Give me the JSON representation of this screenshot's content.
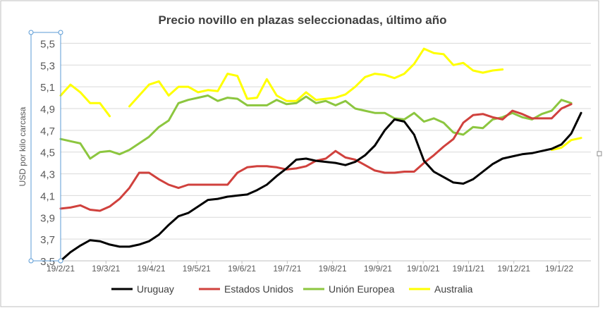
{
  "chart_data": {
    "type": "line",
    "title": "Precio novillo en plazas seleccionadas, último año",
    "xlabel": "",
    "ylabel": "USD por kilo carcasa",
    "ylim": [
      3.5,
      5.6
    ],
    "y_ticks": [
      "3,5",
      "3,7",
      "3,9",
      "4,1",
      "4,3",
      "4,5",
      "4,7",
      "4,9",
      "5,1",
      "5,3",
      "5,5"
    ],
    "x_tick_labels": [
      "19/2/21",
      "19/3/21",
      "19/4/21",
      "19/5/21",
      "19/6/21",
      "19/7/21",
      "19/8/21",
      "19/9/21",
      "19/10/21",
      "19/11/21",
      "19/12/21",
      "19/1/22"
    ],
    "x_count": 55,
    "grid": true,
    "legend_position": "bottom",
    "colors": {
      "Uruguay": "#000000",
      "Estados Unidos": "#d0413d",
      "Unión Europea": "#8cc63f",
      "Australia": "#ffff00",
      "grid": "#d9d9d9",
      "axis_text": "#595959",
      "title": "#404040"
    },
    "series": [
      {
        "name": "Uruguay",
        "values": [
          3.5,
          3.58,
          3.64,
          3.69,
          3.68,
          3.65,
          3.63,
          3.63,
          3.65,
          3.68,
          3.74,
          3.83,
          3.91,
          3.94,
          4.0,
          4.06,
          4.07,
          4.09,
          4.1,
          4.11,
          4.15,
          4.2,
          4.28,
          4.35,
          4.43,
          4.44,
          4.42,
          4.41,
          4.4,
          4.38,
          4.41,
          4.47,
          4.56,
          4.7,
          4.8,
          4.78,
          4.66,
          4.42,
          4.32,
          4.27,
          4.22,
          4.21,
          4.25,
          4.32,
          4.39,
          4.44,
          4.46,
          4.48,
          4.49,
          4.51,
          4.53,
          4.57,
          4.67,
          4.86
        ]
      },
      {
        "name": "Estados Unidos",
        "values": [
          3.98,
          3.99,
          4.01,
          3.97,
          3.96,
          4.0,
          4.07,
          4.17,
          4.31,
          4.31,
          4.25,
          4.2,
          4.17,
          4.2,
          4.2,
          4.2,
          4.2,
          4.2,
          4.31,
          4.36,
          4.37,
          4.37,
          4.36,
          4.34,
          4.35,
          4.37,
          4.42,
          4.44,
          4.51,
          4.45,
          4.43,
          4.38,
          4.33,
          4.31,
          4.31,
          4.32,
          4.32,
          4.4,
          4.47,
          4.55,
          4.62,
          4.77,
          4.84,
          4.85,
          4.82,
          4.8,
          4.88,
          4.85,
          4.81,
          4.81,
          4.81,
          4.9,
          4.94
        ]
      },
      {
        "name": "Unión Europea",
        "values": [
          4.62,
          4.6,
          4.58,
          4.44,
          4.5,
          4.51,
          4.48,
          4.52,
          4.58,
          4.64,
          4.73,
          4.79,
          4.95,
          4.98,
          5.0,
          5.02,
          4.97,
          5.0,
          4.99,
          4.93,
          4.93,
          4.93,
          4.98,
          4.94,
          4.95,
          5.01,
          4.95,
          4.97,
          4.93,
          4.97,
          4.9,
          4.88,
          4.86,
          4.86,
          4.81,
          4.8,
          4.86,
          4.78,
          4.81,
          4.77,
          4.68,
          4.66,
          4.73,
          4.72,
          4.8,
          4.82,
          4.86,
          4.82,
          4.8,
          4.85,
          4.88,
          4.98,
          4.95
        ]
      },
      {
        "name": "Australia",
        "values": [
          5.02,
          5.12,
          5.05,
          4.95,
          4.95,
          4.83,
          null,
          4.92,
          5.02,
          5.12,
          5.15,
          5.02,
          5.1,
          5.1,
          5.05,
          5.07,
          5.06,
          5.22,
          5.2,
          4.99,
          5.0,
          5.17,
          5.02,
          4.97,
          4.97,
          5.05,
          4.98,
          4.99,
          5.0,
          5.03,
          5.1,
          5.19,
          5.22,
          5.21,
          5.18,
          5.22,
          5.31,
          5.45,
          5.41,
          5.4,
          5.3,
          5.32,
          5.25,
          5.23,
          5.25,
          5.26,
          null,
          null,
          null,
          null,
          4.52,
          4.54,
          4.61,
          4.63
        ]
      }
    ]
  }
}
